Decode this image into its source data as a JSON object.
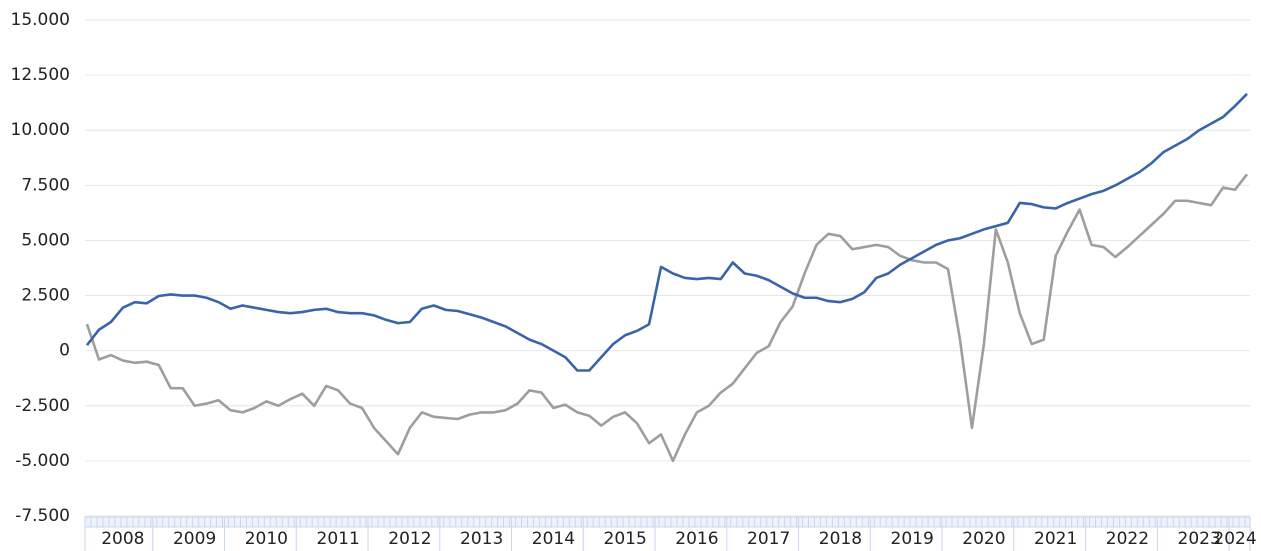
{
  "chart_data": {
    "type": "line",
    "categories": [
      null,
      null,
      null,
      "2008",
      null,
      null,
      null,
      null,
      null,
      "2009",
      null,
      null,
      null,
      null,
      null,
      "2010",
      null,
      null,
      null,
      null,
      null,
      "2011",
      null,
      null,
      null,
      null,
      null,
      "2012",
      null,
      null,
      null,
      null,
      null,
      "2013",
      null,
      null,
      null,
      null,
      null,
      "2014",
      null,
      null,
      null,
      null,
      null,
      "2015",
      null,
      null,
      null,
      null,
      null,
      "2016",
      null,
      null,
      null,
      null,
      null,
      "2017",
      null,
      null,
      null,
      null,
      null,
      "2018",
      null,
      null,
      null,
      null,
      null,
      "2019",
      null,
      null,
      null,
      null,
      null,
      "2020",
      null,
      null,
      null,
      null,
      null,
      "2021",
      null,
      null,
      null,
      null,
      null,
      "2022",
      null,
      null,
      null,
      null,
      null,
      "2023",
      null,
      null,
      "2024",
      null
    ],
    "series": [
      {
        "color": "#3a64a8",
        "values": [
          250,
          950,
          1300,
          1950,
          2200,
          2150,
          2480,
          2550,
          2500,
          2500,
          2400,
          2200,
          1900,
          2050,
          1950,
          1850,
          1750,
          1700,
          1750,
          1850,
          1900,
          1750,
          1700,
          1700,
          1600,
          1400,
          1250,
          1300,
          1900,
          2050,
          1850,
          1800,
          1650,
          1500,
          1300,
          1100,
          800,
          500,
          300,
          0,
          -300,
          -900,
          -900,
          -300,
          300,
          700,
          900,
          1200,
          3800,
          3500,
          3300,
          3250,
          3300,
          3250,
          4000,
          3500,
          3400,
          3200,
          2900,
          2600,
          2400,
          2400,
          2250,
          2200,
          2350,
          2650,
          3300,
          3500,
          3900,
          4200,
          4500,
          4800,
          5000,
          5100,
          5300,
          5500,
          5650,
          5800,
          6700,
          6650,
          6500,
          6450,
          6700,
          6900,
          7100,
          7250,
          7500,
          7800,
          8100,
          8500,
          9000,
          9300,
          9600,
          10000,
          10300,
          10600,
          11100,
          11650
        ]
      },
      {
        "color": "#9e9e9e",
        "values": [
          1200,
          -400,
          -200,
          -450,
          -550,
          -500,
          -650,
          -1700,
          -1700,
          -2500,
          -2400,
          -2250,
          -2700,
          -2800,
          -2600,
          -2300,
          -2500,
          -2200,
          -1950,
          -2500,
          -1600,
          -1800,
          -2400,
          -2600,
          -3500,
          -4100,
          -4700,
          -3500,
          -2800,
          -3000,
          -3050,
          -3100,
          -2900,
          -2800,
          -2800,
          -2700,
          -2400,
          -1800,
          -1900,
          -2600,
          -2450,
          -2800,
          -2950,
          -3400,
          -3000,
          -2800,
          -3300,
          -4200,
          -3800,
          -5000,
          -3800,
          -2800,
          -2500,
          -1900,
          -1500,
          -800,
          -100,
          200,
          1300,
          2000,
          3500,
          4800,
          5300,
          5200,
          4600,
          4700,
          4800,
          4700,
          4300,
          4100,
          4000,
          4000,
          3700,
          500,
          -3500,
          300,
          5500,
          4000,
          1700,
          300,
          500,
          4300,
          5400,
          6400,
          4800,
          4700,
          4250,
          4700,
          5200,
          5700,
          6200,
          6800,
          6800,
          6700,
          6600,
          7400,
          7300,
          8000
        ]
      }
    ],
    "ylim": [
      -7500,
      15000
    ],
    "yticks": [
      {
        "value": 15000,
        "label": "15.000"
      },
      {
        "value": 12500,
        "label": "12.500"
      },
      {
        "value": 10000,
        "label": "10.000"
      },
      {
        "value": 7500,
        "label": "7.500"
      },
      {
        "value": 5000,
        "label": "5.000"
      },
      {
        "value": 2500,
        "label": "2.500"
      },
      0,
      {
        "value": -2500,
        "label": "-2.500"
      },
      {
        "value": -5000,
        "label": "-5.000"
      },
      {
        "value": -7500,
        "label": "-7.500"
      }
    ],
    "grid": true
  }
}
